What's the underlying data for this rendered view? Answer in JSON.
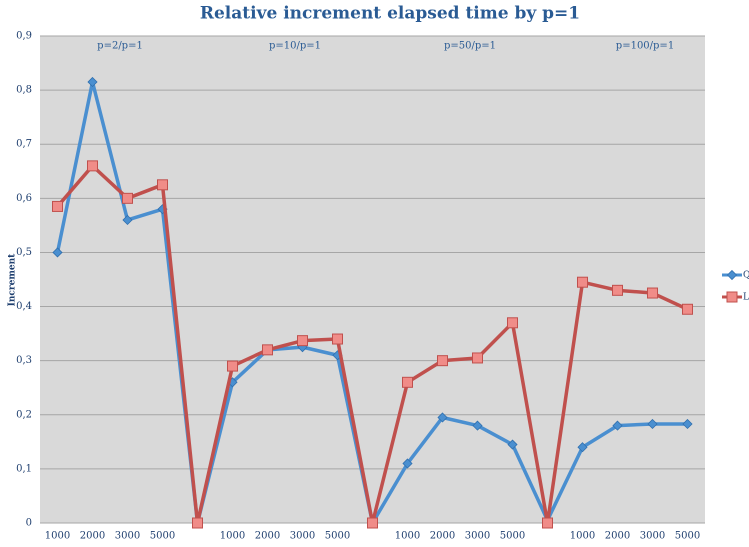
{
  "chart_data": {
    "type": "line",
    "title": "Relative increment elapsed time by p=1",
    "y_label": "Increment",
    "categories": [
      "1000",
      "2000",
      "3000",
      "5000",
      null,
      "1000",
      "2000",
      "3000",
      "5000",
      null,
      "1000",
      "2000",
      "3000",
      "5000",
      null,
      "1000",
      "2000",
      "3000",
      "5000"
    ],
    "annotations": [
      "p=2/p=1",
      "p=10/p=1",
      "p=50/p=1",
      "p=100/p=1"
    ],
    "series": [
      {
        "name": "Q",
        "color": "#4a8fd0",
        "marker": "diamond",
        "values": [
          0.5,
          0.815,
          0.56,
          0.58,
          0,
          0.26,
          0.32,
          0.325,
          0.31,
          0,
          0.11,
          0.195,
          0.18,
          0.145,
          0.005,
          0.14,
          0.18,
          0.183,
          0.183
        ]
      },
      {
        "name": "LS",
        "color": "#c0504d",
        "marker": "square",
        "values": [
          0.585,
          0.66,
          0.6,
          0.625,
          0,
          0.29,
          0.32,
          0.337,
          0.34,
          0,
          0.26,
          0.3,
          0.305,
          0.37,
          0,
          0.445,
          0.43,
          0.425,
          0.395
        ]
      }
    ],
    "ylim": [
      0,
      0.9
    ],
    "yticks": [
      0,
      {
        "value": 0.1,
        "label": "0,1"
      },
      {
        "value": 0.2,
        "label": "0,2"
      },
      {
        "value": 0.3,
        "label": "0,3"
      },
      {
        "value": 0.4,
        "label": "0,4"
      },
      {
        "value": 0.5,
        "label": "0,5"
      },
      {
        "value": 0.6,
        "label": "0,6"
      },
      {
        "value": 0.7,
        "label": "0,7"
      },
      {
        "value": 0.8,
        "label": "0,8"
      },
      {
        "value": 0.9,
        "label": "0,9"
      }
    ],
    "grid": true,
    "legend": "right"
  }
}
